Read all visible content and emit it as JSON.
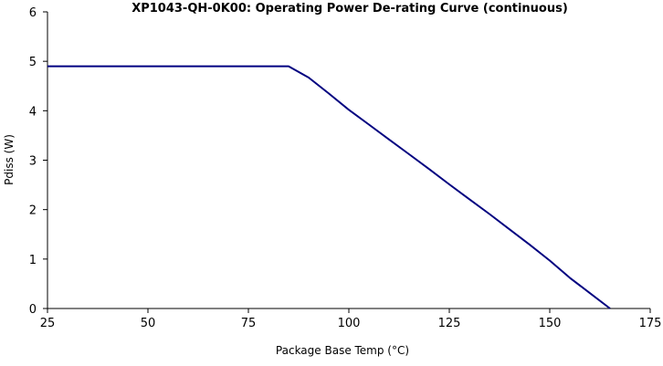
{
  "chart_data": {
    "type": "line",
    "title": "XP1043-QH-0K00: Operating Power De-rating Curve (continuous)",
    "xlabel": "Package Base Temp (°C)",
    "ylabel": "Pdiss (W)",
    "xlim": [
      25,
      175
    ],
    "ylim": [
      0,
      6
    ],
    "x_ticks": [
      "25",
      "50",
      "75",
      "100",
      "125",
      "150",
      "175"
    ],
    "y_ticks": [
      "0",
      "1",
      "2",
      "3",
      "4",
      "5",
      "6"
    ],
    "grid": false,
    "legend": "none",
    "series": [
      {
        "color": "#000080",
        "x": [
          25,
          85,
          90,
          95,
          100,
          105,
          110,
          115,
          120,
          125,
          130,
          135,
          140,
          145,
          150,
          155,
          160,
          165
        ],
        "y": [
          4.9,
          4.9,
          4.67,
          4.35,
          4.02,
          3.72,
          3.42,
          3.12,
          2.82,
          2.51,
          2.21,
          1.91,
          1.6,
          1.29,
          0.97,
          0.62,
          0.31,
          0.0
        ]
      }
    ]
  }
}
